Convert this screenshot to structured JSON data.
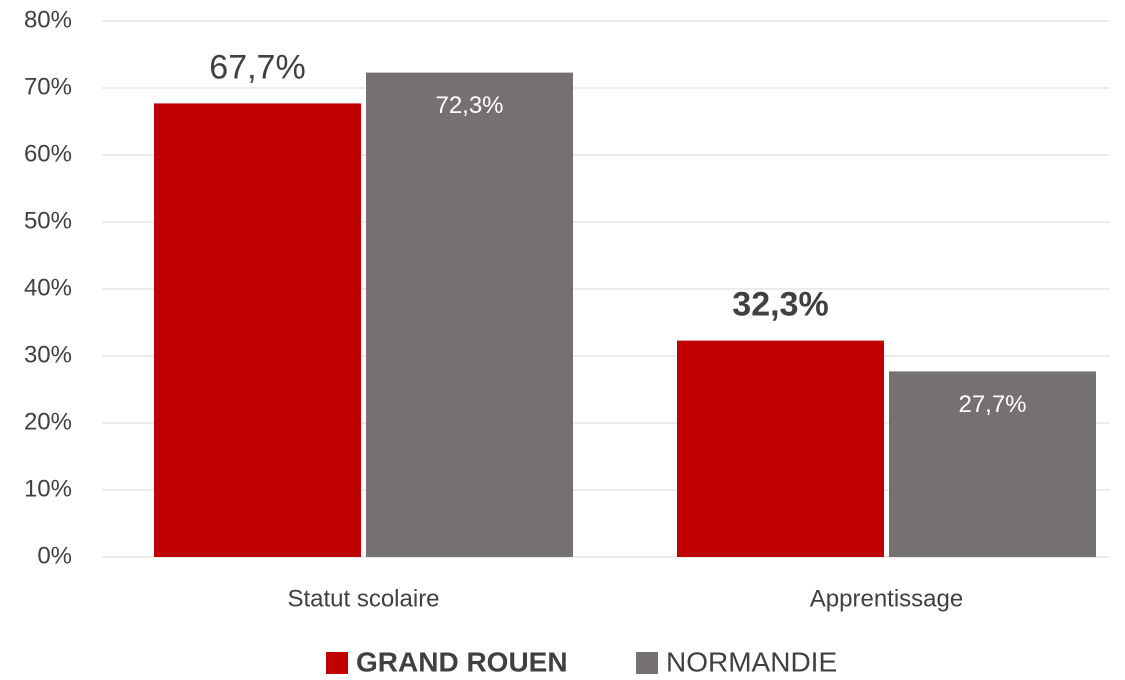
{
  "chart_data": {
    "type": "bar",
    "categories": [
      "Statut scolaire",
      "Apprentissage"
    ],
    "series": [
      {
        "name": "GRAND ROUEN",
        "color": "#c00000",
        "values": [
          67.7,
          32.3
        ],
        "value_labels": [
          "67,7%",
          "32,3%"
        ]
      },
      {
        "name": "NORMANDIE",
        "color": "#767171",
        "values": [
          72.3,
          27.7
        ],
        "value_labels": [
          "72,3%",
          "27,7%"
        ]
      }
    ],
    "ylim": [
      0,
      80
    ],
    "yticks": [
      {
        "value": 0,
        "label": "0%"
      },
      {
        "value": 10,
        "label": "10%"
      },
      {
        "value": 20,
        "label": "20%"
      },
      {
        "value": 30,
        "label": "30%"
      },
      {
        "value": 40,
        "label": "40%"
      },
      {
        "value": 50,
        "label": "50%"
      },
      {
        "value": 60,
        "label": "60%"
      },
      {
        "value": 70,
        "label": "70%"
      },
      {
        "value": 80,
        "label": "80%"
      }
    ],
    "grid": true,
    "legend": "bottom"
  }
}
